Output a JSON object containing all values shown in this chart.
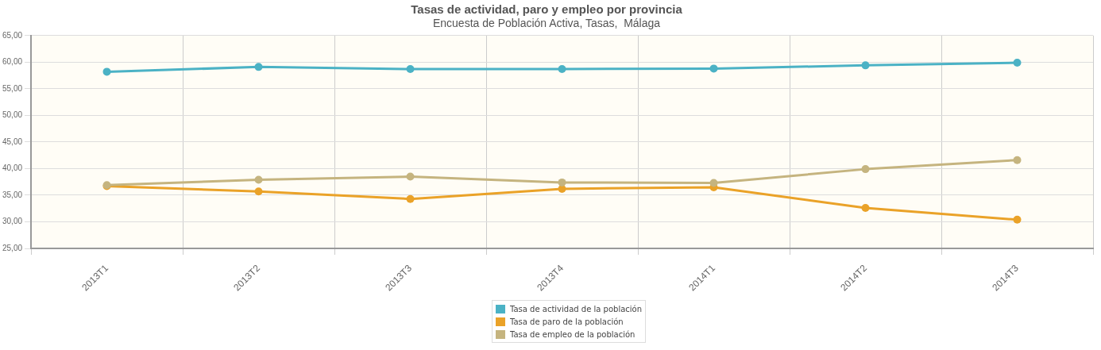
{
  "chart_data": {
    "type": "line",
    "title": "Tasas de actividad, paro y empleo por provincia",
    "subtitle": "Encuesta de Población Activa, Tasas,  Málaga",
    "categories": [
      "2013T1",
      "2013T2",
      "2013T3",
      "2013T4",
      "2014T1",
      "2014T2",
      "2014T3"
    ],
    "series": [
      {
        "name": "Tasa de actividad de la población",
        "color": "#4bb2c5",
        "values": [
          58.2,
          59.1,
          58.7,
          58.7,
          58.8,
          59.4,
          59.9
        ]
      },
      {
        "name": "Tasa de paro de la población",
        "color": "#eaa228",
        "values": [
          36.7,
          35.7,
          34.3,
          36.2,
          36.5,
          32.6,
          30.4
        ]
      },
      {
        "name": "Tasa de empleo de la población",
        "color": "#c5b47f",
        "values": [
          36.9,
          37.9,
          38.5,
          37.4,
          37.3,
          39.9,
          41.6
        ]
      }
    ],
    "ylim": [
      25,
      65
    ],
    "yticks": [
      {
        "value": 25,
        "label": "25,00"
      },
      {
        "value": 30,
        "label": "30,00"
      },
      {
        "value": 35,
        "label": "35,00"
      },
      {
        "value": 40,
        "label": "40,00"
      },
      {
        "value": 45,
        "label": "45,00"
      },
      {
        "value": 50,
        "label": "50,00"
      },
      {
        "value": 55,
        "label": "55,00"
      },
      {
        "value": 60,
        "label": "60,00"
      },
      {
        "value": 65,
        "label": "65,00"
      }
    ],
    "grid": true,
    "legend": "bottom",
    "marker": "circle",
    "line_style": "solid"
  }
}
